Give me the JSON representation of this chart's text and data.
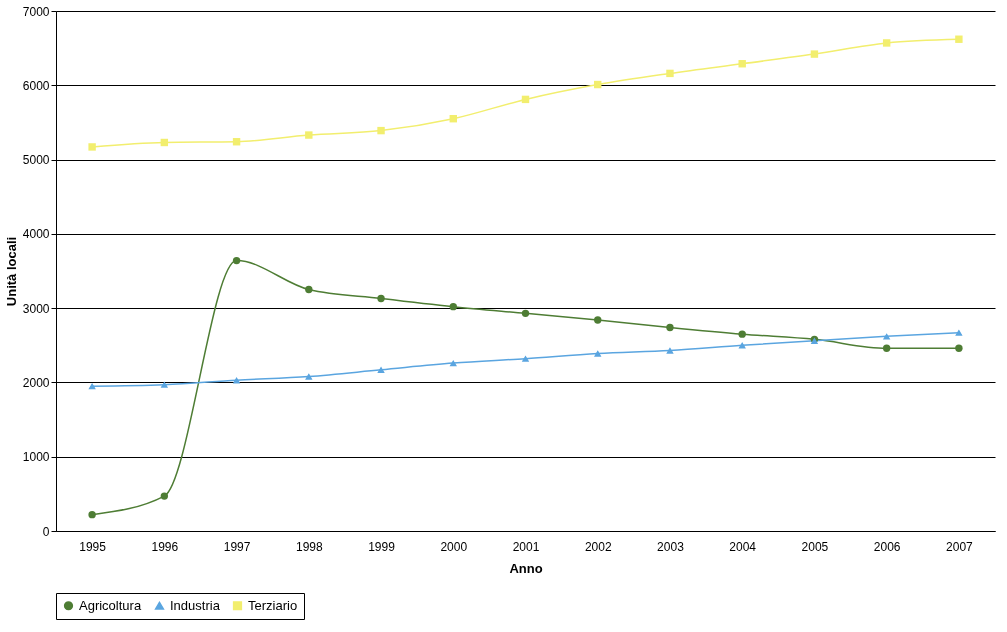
{
  "chart_data": {
    "type": "line",
    "xlabel": "Anno",
    "ylabel": "Unità locali",
    "categories": [
      "1995",
      "1996",
      "1997",
      "1998",
      "1999",
      "2000",
      "2001",
      "2002",
      "2003",
      "2004",
      "2005",
      "2006",
      "2007"
    ],
    "ylim": [
      0,
      7000
    ],
    "yticks": [
      0,
      1000,
      2000,
      3000,
      4000,
      5000,
      6000,
      7000
    ],
    "grid": "y",
    "legend": "bottom",
    "line_style": "solid",
    "series": [
      {
        "name": "Agricoltura",
        "color": "#4e7d34",
        "marker": "circle",
        "values": [
          220,
          470,
          3640,
          3250,
          3130,
          3020,
          2930,
          2840,
          2740,
          2650,
          2580,
          2460,
          2460
        ]
      },
      {
        "name": "Industria",
        "color": "#5aa5e0",
        "marker": "triangle",
        "values": [
          1950,
          1970,
          2030,
          2080,
          2170,
          2260,
          2320,
          2390,
          2430,
          2500,
          2560,
          2620,
          2670
        ]
      },
      {
        "name": "Terziario",
        "color": "#f2ee6e",
        "marker": "square",
        "values": [
          5170,
          5230,
          5240,
          5330,
          5390,
          5550,
          5810,
          6010,
          6160,
          6290,
          6420,
          6570,
          6620
        ]
      }
    ]
  }
}
